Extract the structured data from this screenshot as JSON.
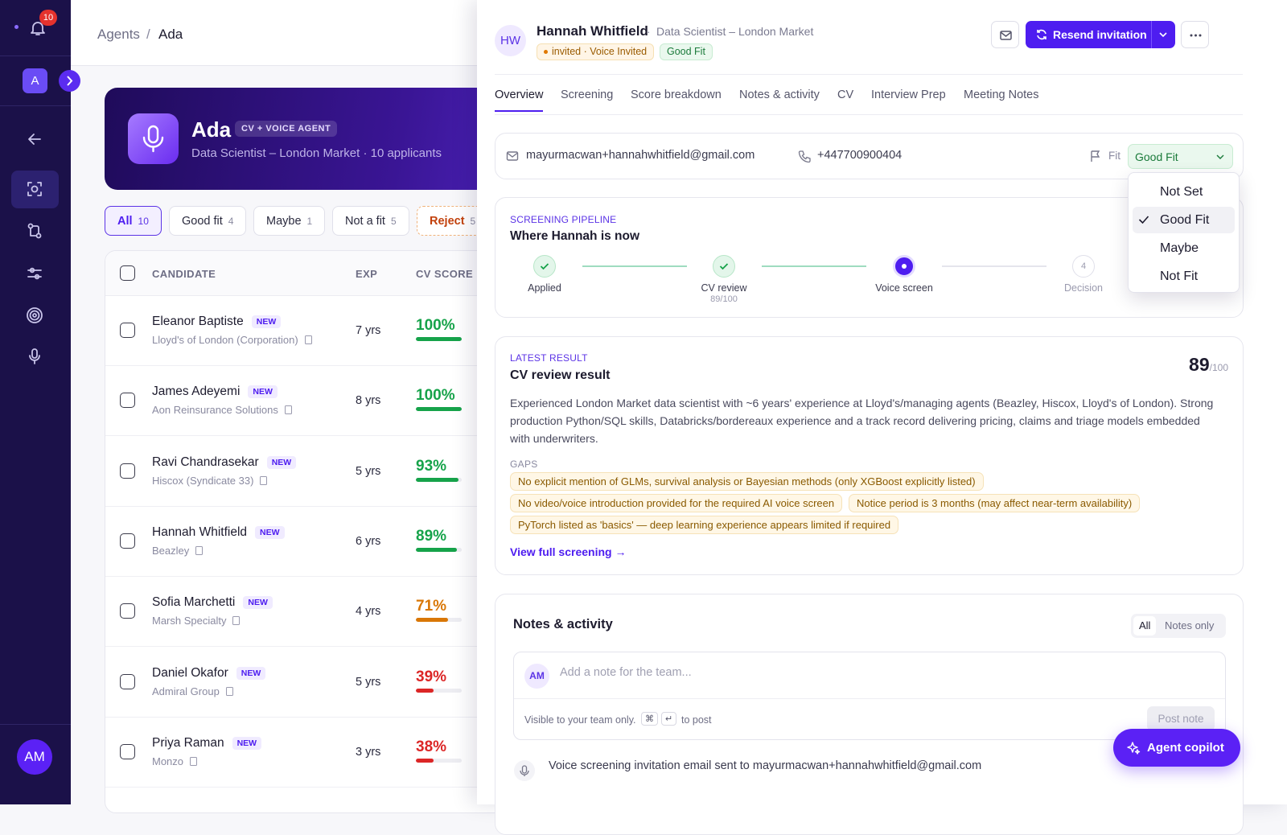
{
  "sidebar": {
    "notifications": "10",
    "workspace": "A",
    "user": "AM"
  },
  "breadcrumb": {
    "parent": "Agents",
    "separator": "/",
    "current": "Ada"
  },
  "agent": {
    "name": "Ada",
    "badge": "CV + VOICE AGENT",
    "subtitle": "Data Scientist – London Market · 10 applicants"
  },
  "filters": [
    {
      "label": "All",
      "count": 10
    },
    {
      "label": "Good fit",
      "count": 4
    },
    {
      "label": "Maybe",
      "count": 1
    },
    {
      "label": "Not a fit",
      "count": 5
    },
    {
      "label": "Reject",
      "count": 5
    }
  ],
  "table": {
    "headers": [
      "CANDIDATE",
      "EXP",
      "CV SCORE"
    ],
    "score_range": [
      0,
      100
    ],
    "rows": [
      {
        "name": "Eleanor Baptiste",
        "badge": "NEW",
        "company": "Lloyd's of London (Corporation)",
        "exp": "7 yrs",
        "score": 100,
        "score_label": "100%",
        "color": "#16a34a"
      },
      {
        "name": "James Adeyemi",
        "badge": "NEW",
        "company": "Aon Reinsurance Solutions",
        "exp": "8 yrs",
        "score": 100,
        "score_label": "100%",
        "color": "#16a34a"
      },
      {
        "name": "Ravi Chandrasekar",
        "badge": "NEW",
        "company": "Hiscox (Syndicate 33)",
        "exp": "5 yrs",
        "score": 93,
        "score_label": "93%",
        "color": "#16a34a"
      },
      {
        "name": "Hannah Whitfield",
        "badge": "NEW",
        "company": "Beazley",
        "exp": "6 yrs",
        "score": 89,
        "score_label": "89%",
        "color": "#16a34a"
      },
      {
        "name": "Sofia Marchetti",
        "badge": "NEW",
        "company": "Marsh Specialty",
        "exp": "4 yrs",
        "score": 71,
        "score_label": "71%",
        "color": "#d97706"
      },
      {
        "name": "Daniel Okafor",
        "badge": "NEW",
        "company": "Admiral Group",
        "exp": "5 yrs",
        "score": 39,
        "score_label": "39%",
        "color": "#dc2626"
      },
      {
        "name": "Priya Raman",
        "badge": "NEW",
        "company": "Monzo",
        "exp": "3 yrs",
        "score": 38,
        "score_label": "38%",
        "color": "#dc2626"
      }
    ]
  },
  "candidate": {
    "initials": "HW",
    "name": "Hannah Whitfield",
    "separator": "·",
    "role": "Data Scientist – London Market",
    "status": "invited · Voice Invited",
    "fit": "Good Fit",
    "resend": "Resend invitation"
  },
  "tabs": [
    "Overview",
    "Screening",
    "Score breakdown",
    "Notes & activity",
    "CV",
    "Interview Prep",
    "Meeting Notes"
  ],
  "contact": {
    "email": "mayurmacwan+hannahwhitfield@gmail.com",
    "phone": "+447700900404",
    "fit_label": "Fit",
    "fit_value": "Good Fit"
  },
  "fit_menu": {
    "options": [
      "Not Set",
      "Good Fit",
      "Maybe",
      "Not Fit"
    ],
    "selected": 1
  },
  "pipeline": {
    "eyebrow": "SCREENING PIPELINE",
    "title": "Where Hannah is now",
    "steps": [
      {
        "label": "Applied",
        "state": "done"
      },
      {
        "label": "CV review",
        "detail": "89/100",
        "state": "done"
      },
      {
        "label": "Voice screen",
        "state": "current"
      },
      {
        "label": "Decision",
        "number": "4",
        "state": "pending"
      }
    ]
  },
  "latest": {
    "eyebrow": "LATEST RESULT",
    "title": "CV review result",
    "score": "89",
    "score_max": "/100",
    "summary": "Experienced London Market data scientist with ~6 years' experience at Lloyd's/managing agents (Beazley, Hiscox, Lloyd's of London). Strong production Python/SQL skills, Databricks/bordereaux experience and a track record delivering pricing, claims and triage models embedded with underwriters.",
    "gaps_label": "GAPS",
    "gaps": [
      "No explicit mention of GLMs, survival analysis or Bayesian methods (only XGBoost explicitly listed)",
      "No video/voice introduction provided for the required AI voice screen",
      "Notice period is 3 months (may affect near-term availability)",
      "PyTorch listed as 'basics' — deep learning experience appears limited if required"
    ],
    "link": "View full screening →"
  },
  "notes": {
    "title": "Notes & activity",
    "filters": [
      "All",
      "Notes only"
    ],
    "avatar": "AM",
    "placeholder": "Add a note for the team...",
    "hint": "Visible to your team only.",
    "keys": [
      "⌘",
      "↵"
    ],
    "hint_end": "to post",
    "button": "Post note",
    "activity": "Voice screening invitation email sent to mayurmacwan+hannahwhitfield@gmail.com"
  },
  "copilot": "Agent copilot"
}
